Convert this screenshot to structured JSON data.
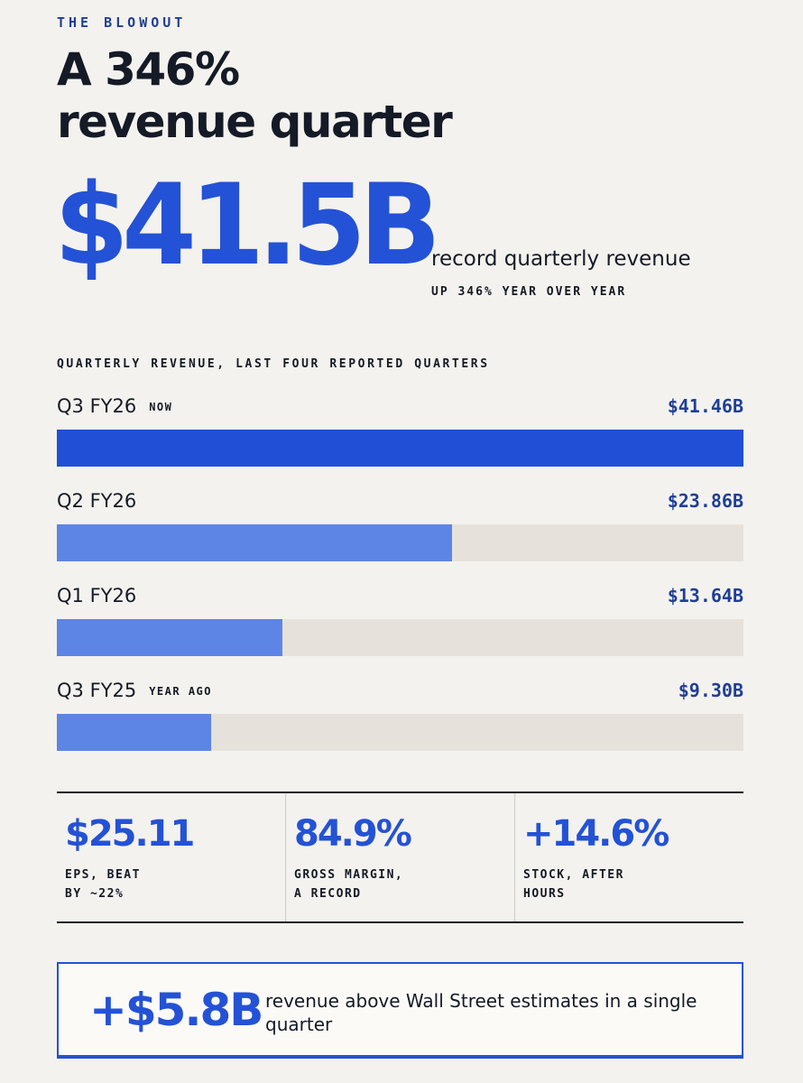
{
  "header": {
    "eyebrow": "THE BLOWOUT",
    "headline_line1": "A 346%",
    "headline_line2": "revenue quarter"
  },
  "hero": {
    "value": "$41.5B",
    "caption": "record quarterly revenue",
    "sub": "UP 346% YEAR OVER YEAR"
  },
  "colors": {
    "accent": "#2452d6",
    "bar_current": "#2150d6",
    "bar_past": "#5c85e6",
    "track": "#e6e2db",
    "value_text": "#1f3f96",
    "background": "#f4f2ee"
  },
  "chart_data": {
    "type": "bar",
    "orientation": "horizontal",
    "title": "QUARTERLY REVENUE, LAST FOUR REPORTED QUARTERS",
    "unit": "$B",
    "xlim": [
      0,
      41.46
    ],
    "categories": [
      "Q3 FY26",
      "Q2 FY26",
      "Q1 FY26",
      "Q3 FY25"
    ],
    "tags": [
      "NOW",
      "",
      "",
      "YEAR AGO"
    ],
    "values": [
      41.46,
      23.86,
      13.64,
      9.3
    ],
    "value_labels": [
      "$41.46B",
      "$23.86B",
      "$13.64B",
      "$9.30B"
    ],
    "highlight_index": 0
  },
  "stats": [
    {
      "value": "$25.11",
      "label": "EPS, BEAT\nBY ~22%"
    },
    {
      "value": "84.9%",
      "label": "GROSS MARGIN,\nA RECORD"
    },
    {
      "value": "+14.6%",
      "label": "STOCK, AFTER\nHOURS"
    }
  ],
  "callout": {
    "value": "+$5.8B",
    "text": "revenue above Wall Street estimates in a single quarter"
  }
}
